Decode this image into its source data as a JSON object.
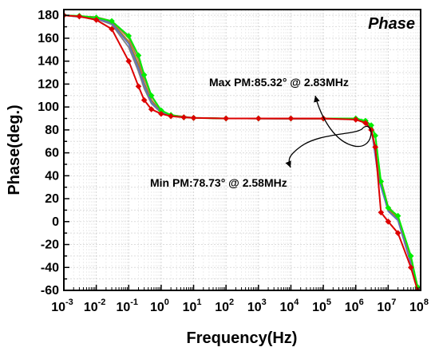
{
  "chart_data": {
    "type": "line",
    "title": "Phase",
    "xlabel": "Frequency(Hz)",
    "ylabel": "Phase(deg.)",
    "x_scale": "log",
    "xlim": [
      0.001,
      100000000
    ],
    "ylim": [
      -60,
      185
    ],
    "grid": true,
    "x_ticks": [
      {
        "base": "10",
        "exp": "-3"
      },
      {
        "base": "10",
        "exp": "-2"
      },
      {
        "base": "10",
        "exp": "-1"
      },
      {
        "base": "10",
        "exp": "0"
      },
      {
        "base": "10",
        "exp": "1"
      },
      {
        "base": "10",
        "exp": "2"
      },
      {
        "base": "10",
        "exp": "3"
      },
      {
        "base": "10",
        "exp": "4"
      },
      {
        "base": "10",
        "exp": "5"
      },
      {
        "base": "10",
        "exp": "6"
      },
      {
        "base": "10",
        "exp": "7"
      },
      {
        "base": "10",
        "exp": "8"
      }
    ],
    "y_ticks": [
      "180",
      "160",
      "140",
      "120",
      "100",
      "80",
      "60",
      "40",
      "20",
      "0",
      "-20",
      "-40",
      "-60"
    ],
    "series": [
      {
        "color": "#00ee00",
        "marker": "diamond",
        "x": [
          0.001,
          0.003,
          0.01,
          0.03,
          0.1,
          0.2,
          0.3,
          0.5,
          1,
          2,
          5,
          10,
          100,
          1000,
          10000,
          100000,
          1000000,
          2000000,
          3000000,
          4000000,
          6000000,
          10000000,
          20000000,
          50000000,
          80000000
        ],
        "y": [
          180,
          179.5,
          178,
          175,
          162,
          145,
          128,
          110,
          97,
          93,
          91,
          90.5,
          90,
          90,
          90,
          90,
          90,
          88,
          84,
          75,
          35,
          12,
          5,
          -30,
          -57
        ]
      },
      {
        "color": "#dd0000",
        "marker": "diamond",
        "x": [
          0.001,
          0.003,
          0.01,
          0.03,
          0.1,
          0.2,
          0.3,
          0.5,
          1,
          2,
          5,
          10,
          100,
          1000,
          10000,
          100000,
          1000000,
          2000000,
          3000000,
          4000000,
          6000000,
          10000000,
          20000000,
          50000000,
          80000000
        ],
        "y": [
          180,
          179,
          176,
          168,
          140,
          118,
          106,
          98,
          94,
          92,
          91,
          90.5,
          90,
          90,
          90,
          90,
          89,
          86,
          80,
          65,
          8,
          0,
          -10,
          -40,
          -60
        ]
      },
      {
        "color": "#808080",
        "x": [
          0.001,
          0.01,
          0.03,
          0.1,
          0.2,
          0.3,
          0.5,
          1,
          2,
          10,
          100,
          1000000,
          2000000,
          3000000,
          5000000,
          10000000,
          20000000,
          50000000,
          80000000
        ],
        "y": [
          180,
          177,
          172,
          152,
          131,
          116,
          103,
          95,
          92,
          90.5,
          90,
          89.5,
          87,
          82,
          40,
          10,
          2,
          -35,
          -58
        ]
      },
      {
        "color": "#a08020",
        "x": [
          0.001,
          0.01,
          0.03,
          0.1,
          0.2,
          0.3,
          0.5,
          1,
          2,
          10,
          100,
          1000000,
          2000000,
          3000000,
          5000000,
          10000000,
          20000000,
          50000000,
          80000000
        ],
        "y": [
          180,
          178,
          174,
          157,
          137,
          121,
          106,
          96,
          93,
          90.5,
          90,
          89.5,
          87,
          82,
          42,
          11,
          3,
          -34,
          -57
        ]
      },
      {
        "color": "#6070c0",
        "x": [
          0.001,
          0.01,
          0.03,
          0.1,
          0.2,
          0.3,
          0.5,
          1,
          2,
          10,
          100,
          1000000,
          2000000,
          3000000,
          5000000,
          10000000,
          20000000,
          50000000,
          80000000
        ],
        "y": [
          180,
          177.5,
          173,
          155,
          134,
          119,
          104,
          95.5,
          92.5,
          90.5,
          90,
          89.5,
          87,
          82,
          38,
          9,
          1,
          -37,
          -59
        ]
      },
      {
        "color": "#b07050",
        "x": [
          0.001,
          0.01,
          0.03,
          0.1,
          0.2,
          0.3,
          0.5,
          1,
          2,
          10,
          100,
          1000000,
          2000000,
          3000000,
          5000000,
          10000000,
          20000000,
          50000000,
          80000000
        ],
        "y": [
          180,
          178.5,
          175,
          160,
          141,
          125,
          109,
          97,
          93,
          90.5,
          90,
          89.5,
          87.5,
          83,
          45,
          13,
          4,
          -32,
          -56
        ]
      }
    ],
    "annotations": [
      {
        "text": "Max PM:85.32° @ 2.83MHz",
        "color": "#1414cc"
      },
      {
        "text": "Min PM:78.73° @ 2.58MHz",
        "color": "#1414cc"
      }
    ]
  }
}
